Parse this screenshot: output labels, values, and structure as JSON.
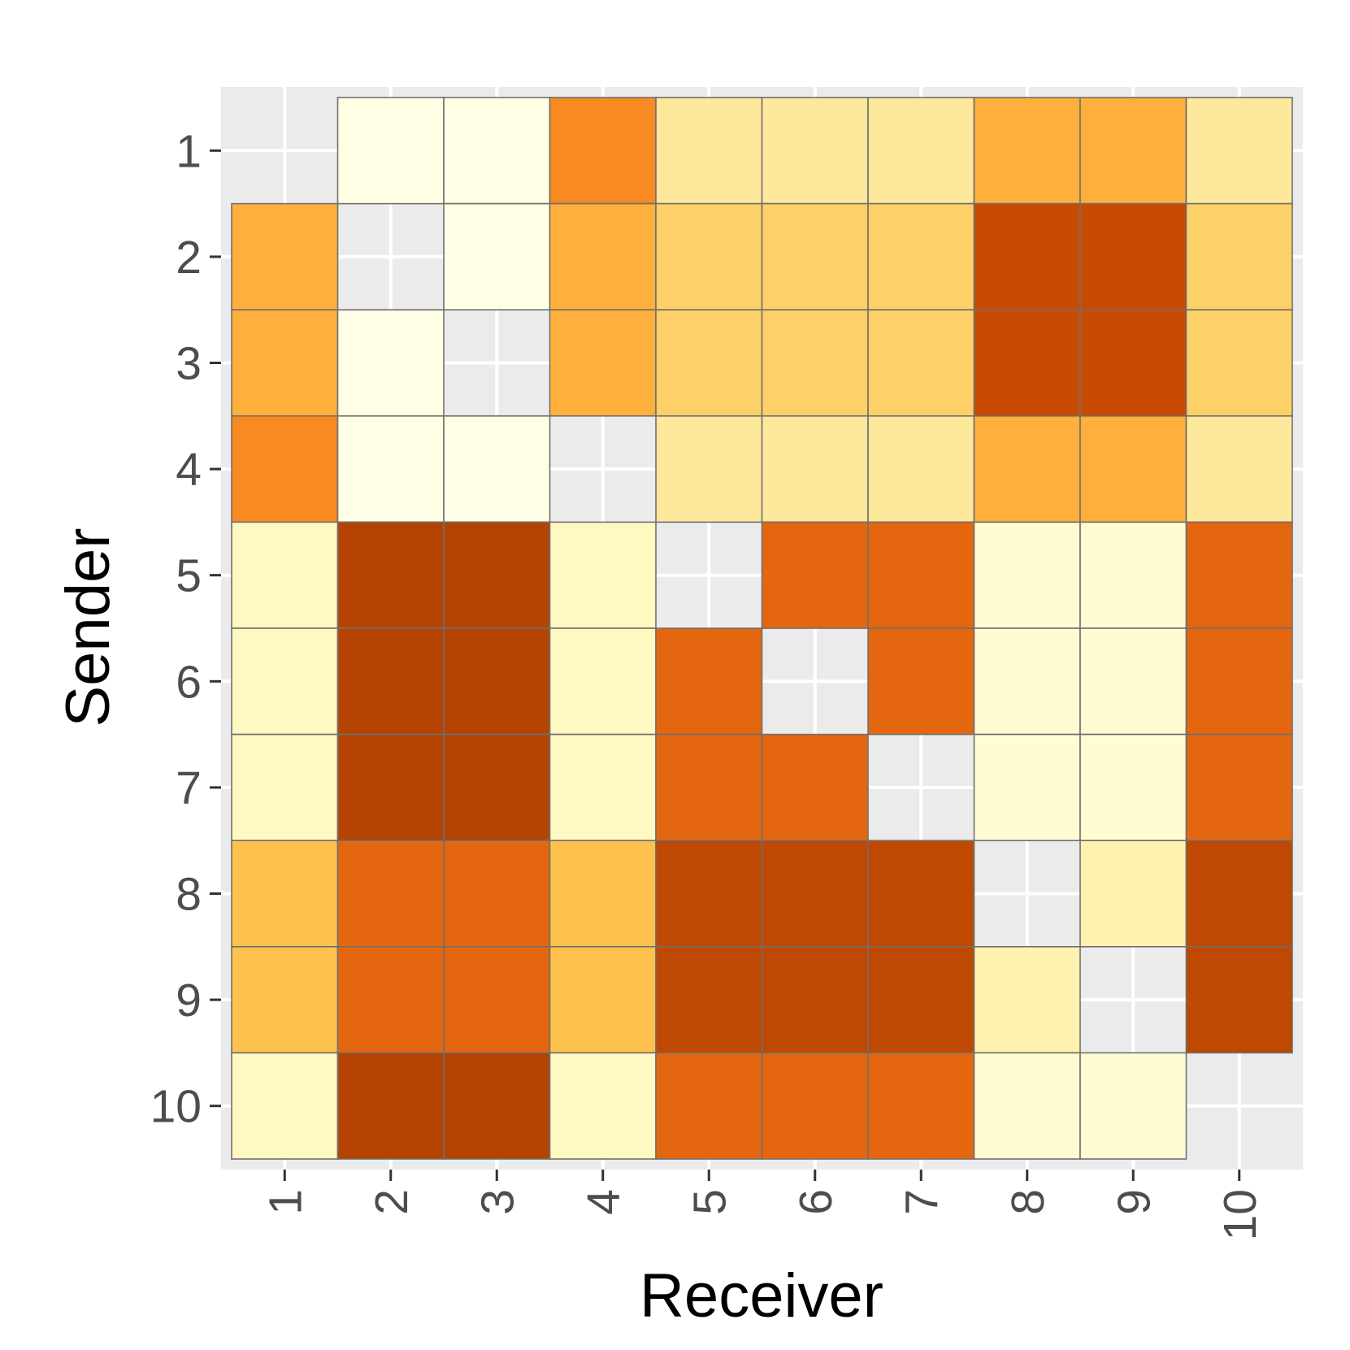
{
  "chart_data": {
    "type": "heatmap",
    "title": "",
    "xlabel": "Receiver",
    "ylabel": "Sender",
    "x_categories": [
      "1",
      "2",
      "3",
      "4",
      "5",
      "6",
      "7",
      "8",
      "9",
      "10"
    ],
    "y_categories": [
      "1",
      "2",
      "3",
      "4",
      "5",
      "6",
      "7",
      "8",
      "9",
      "10"
    ],
    "value_range": [
      0,
      8
    ],
    "values": [
      [
        null,
        0,
        0,
        5,
        2,
        2,
        2,
        4,
        4,
        2
      ],
      [
        4,
        null,
        0,
        4,
        3,
        3,
        3,
        7,
        7,
        3
      ],
      [
        4,
        0,
        null,
        4,
        3,
        3,
        3,
        7,
        7,
        3
      ],
      [
        5,
        0,
        0,
        null,
        2,
        2,
        2,
        4,
        4,
        2
      ],
      [
        1,
        8,
        8,
        1,
        null,
        6,
        6,
        0.5,
        0.5,
        6
      ],
      [
        1,
        8,
        8,
        1,
        6,
        null,
        6,
        0.5,
        0.5,
        6
      ],
      [
        1,
        8,
        8,
        1,
        6,
        6,
        null,
        0.5,
        0.5,
        6
      ],
      [
        3.5,
        6,
        6,
        3.5,
        7.5,
        7.5,
        7.5,
        null,
        1.5,
        7.5
      ],
      [
        3.5,
        6,
        6,
        3.5,
        7.5,
        7.5,
        7.5,
        1.5,
        null,
        7.5
      ],
      [
        1,
        8,
        8,
        1,
        6,
        6,
        6,
        0.5,
        0.5,
        null
      ]
    ],
    "color_scale": {
      "palette": "YlOrBr",
      "stops": [
        "#ffffe5",
        "#fff7bc",
        "#fee391",
        "#fec44f",
        "#fe9929",
        "#ec7014",
        "#cc4c02",
        "#b54402"
      ]
    },
    "panel_background": "#ebebeb",
    "grid": true,
    "legend": "none"
  }
}
